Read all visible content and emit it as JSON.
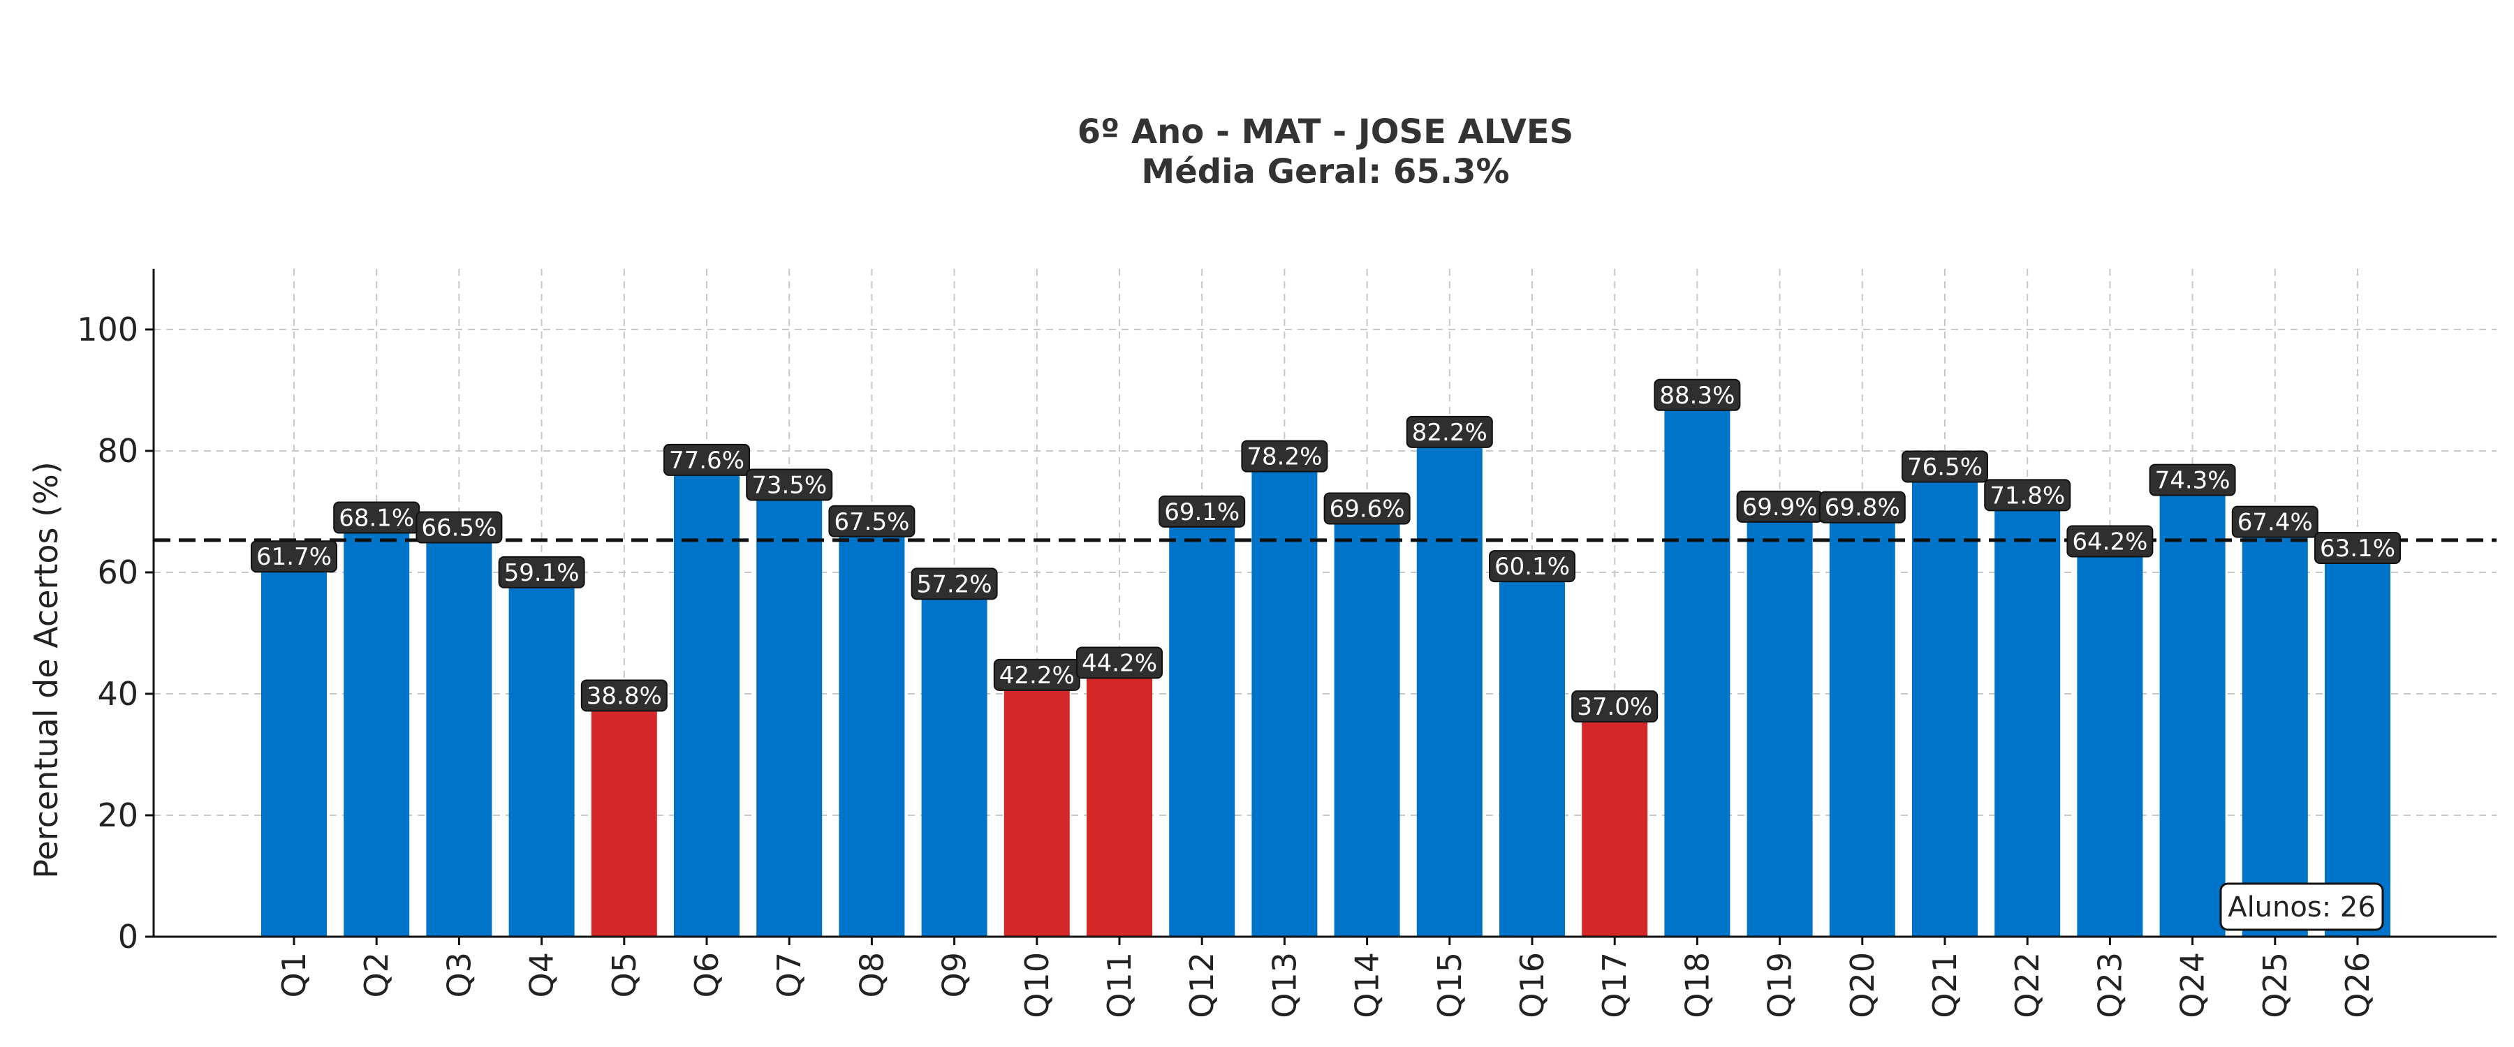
{
  "chart_data": {
    "type": "bar",
    "title_lines": [
      "6º Ano - MAT - JOSE ALVES",
      "Média Geral: 65.3%"
    ],
    "xlabel": "",
    "ylabel": "Percentual de Acertos (%)",
    "ylim": [
      0,
      110
    ],
    "yticks": [
      0,
      20,
      40,
      60,
      80,
      100
    ],
    "categories": [
      "Q1",
      "Q2",
      "Q3",
      "Q4",
      "Q5",
      "Q6",
      "Q7",
      "Q8",
      "Q9",
      "Q10",
      "Q11",
      "Q12",
      "Q13",
      "Q14",
      "Q15",
      "Q16",
      "Q17",
      "Q18",
      "Q19",
      "Q20",
      "Q21",
      "Q22",
      "Q23",
      "Q24",
      "Q25",
      "Q26"
    ],
    "values": [
      61.7,
      68.1,
      66.5,
      59.1,
      38.8,
      77.6,
      73.5,
      67.5,
      57.2,
      42.2,
      44.2,
      69.1,
      78.2,
      69.6,
      82.2,
      60.1,
      37.0,
      88.3,
      69.9,
      69.8,
      76.5,
      71.8,
      64.2,
      74.3,
      67.4,
      63.1
    ],
    "data_labels": [
      "61.7%",
      "68.1%",
      "66.5%",
      "59.1%",
      "38.8%",
      "77.6%",
      "73.5%",
      "67.5%",
      "57.2%",
      "42.2%",
      "44.2%",
      "69.1%",
      "78.2%",
      "69.6%",
      "82.2%",
      "60.1%",
      "37.0%",
      "88.3%",
      "69.9%",
      "69.8%",
      "76.5%",
      "71.8%",
      "64.2%",
      "74.3%",
      "67.4%",
      "63.1%"
    ],
    "mean_line": 65.3,
    "low_threshold": 50,
    "colors": {
      "normal": "#0074c9",
      "low": "#d62728",
      "label_bg": "#2f2f2f",
      "mean_line": "#111111"
    },
    "grid": true,
    "annotation": "Alunos: 26",
    "annotation_position": "bottom-right"
  }
}
